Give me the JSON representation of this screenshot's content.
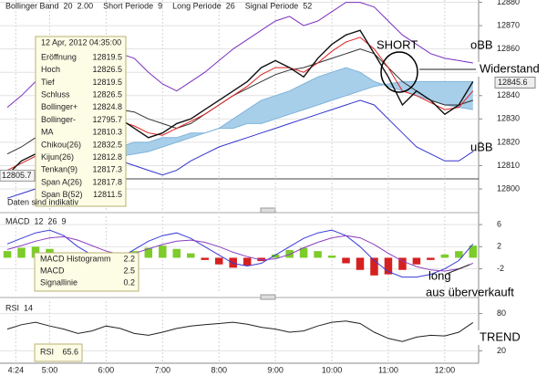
{
  "header": [
    {
      "label": "Bollinger Band",
      "params": [
        20,
        "2.00"
      ]
    },
    {
      "label": "Short Periode",
      "params": [
        9
      ]
    },
    {
      "label": "Long Periode",
      "params": [
        26
      ]
    },
    {
      "label": "Signal Periode",
      "params": [
        52
      ]
    }
  ],
  "info_box": {
    "date": "12 Apr, 2012 04:35:00",
    "rows": [
      {
        "label": "Eröffnung",
        "value": 12819.5,
        "color": "#222222"
      },
      {
        "label": "Hoch",
        "value": 12826.5,
        "color": "#222222"
      },
      {
        "label": "Tief",
        "value": 12819.5,
        "color": "#222222"
      },
      {
        "label": "Schluss",
        "value": 12826.5,
        "color": "#19b8d8"
      },
      {
        "label": "Bollinger+",
        "value": 12824.8,
        "color": "#2a2ad0"
      },
      {
        "label": "Bollinger-",
        "value": 12795.7,
        "color": "#2a2ad0"
      },
      {
        "label": "MA",
        "value": 12810.3,
        "color": "#222222"
      },
      {
        "label": "Chikou(26)",
        "value": 12832.5,
        "color": "#c0246a"
      },
      {
        "label": "Kijun(26)",
        "value": 12812.8,
        "color": "#2a2ad0"
      },
      {
        "label": "Tenkan(9)",
        "value": 12817.3,
        "color": "#e02020"
      },
      {
        "label": "Span A(26)",
        "value": 12817.8,
        "color": "#222222"
      },
      {
        "label": "Span B(52)",
        "value": 12811.5,
        "color": "#bbbbbb"
      }
    ]
  },
  "disclaimer": "Daten sind indikativ",
  "current_price": 12845.6,
  "left_price": 12805.7,
  "annotations": {
    "short": "SHORT",
    "obb": "oBB",
    "resistance": "Widerstand",
    "ubb": "uBB",
    "long1": "long",
    "long2": "aus überverkauft",
    "trend": "TREND"
  },
  "macd_box": [
    {
      "label": "MACD Histogramm",
      "value": 2.2
    },
    {
      "label": "MACD",
      "value": 2.5
    },
    {
      "label": "Signallinie",
      "value": 0.2
    }
  ],
  "macd_header": {
    "label": "MACD",
    "params": [
      12,
      26,
      9
    ]
  },
  "rsi_header": {
    "label": "RSI",
    "params": [
      14
    ]
  },
  "rsi_box": {
    "label": "RSI",
    "value": 65.6
  },
  "chart_data": [
    {
      "type": "line",
      "x": [
        4.25,
        4.5,
        4.75,
        5,
        5.25,
        5.5,
        5.75,
        6,
        6.25,
        6.5,
        6.75,
        7,
        7.25,
        7.5,
        7.75,
        8,
        8.25,
        8.5,
        8.75,
        9,
        9.25,
        9.5,
        9.75,
        10,
        10.25,
        10.5,
        10.75,
        11,
        11.25,
        11.5,
        11.75,
        12,
        12.25,
        12.5
      ],
      "xlim": [
        4.12,
        12.6
      ],
      "xticks": [
        {
          "value": 4.4,
          "label": "4:24"
        },
        {
          "value": 5,
          "label": "5:00"
        },
        {
          "value": 6,
          "label": "6:00"
        },
        {
          "value": 7,
          "label": "7:00"
        },
        {
          "value": 8,
          "label": "8:00"
        },
        {
          "value": 9,
          "label": "9:00"
        },
        {
          "value": 10,
          "label": "10:00"
        },
        {
          "value": 11,
          "label": "11:00"
        },
        {
          "value": 12,
          "label": "12:00"
        }
      ],
      "ylim": [
        12791,
        12881
      ],
      "yticks": [
        12800,
        12810,
        12820,
        12830,
        12840,
        12850,
        12860,
        12870,
        12880
      ],
      "grid": true,
      "cloud": {
        "color": "#a8cfea",
        "span_a": [
          null,
          null,
          null,
          null,
          null,
          null,
          null,
          12812,
          12814,
          12815,
          12816,
          12818,
          12820,
          12822,
          12824,
          12826,
          12830,
          12834,
          12838,
          12840,
          12842,
          12845,
          12848,
          12850,
          12852,
          12850,
          12846,
          12844,
          12842,
          12840,
          12838,
          12836,
          12835,
          12834
        ],
        "span_b": [
          null,
          null,
          null,
          null,
          null,
          null,
          null,
          12818,
          12818,
          12820,
          12820,
          12822,
          12822,
          12824,
          12824,
          12826,
          12826,
          12828,
          12828,
          12830,
          12832,
          12834,
          12836,
          12838,
          12840,
          12842,
          12844,
          12845,
          12846,
          12846,
          12846,
          12846,
          12846,
          12846
        ]
      },
      "series": [
        {
          "color": "#7a2fbf",
          "values": [
            12835,
            12840,
            12846,
            12850,
            12848,
            12845,
            12848,
            12852,
            12858,
            12856,
            12850,
            12845,
            12842,
            12846,
            12850,
            12855,
            12860,
            12864,
            12868,
            12872,
            12874,
            12870,
            12872,
            12876,
            12880,
            12880,
            12878,
            12872,
            12866,
            12862,
            12858,
            12856,
            12855,
            12854
          ]
        },
        {
          "color": "#3333cc",
          "values": [
            12796,
            12798,
            12800,
            12803,
            12806,
            12808,
            12810,
            12812,
            12812,
            12810,
            12808,
            12806,
            12808,
            12812,
            12815,
            12818,
            12820,
            12822,
            12824,
            12826,
            12828,
            12830,
            12832,
            12834,
            12836,
            12838,
            12836,
            12830,
            12824,
            12818,
            12815,
            12812,
            12812,
            12816
          ]
        },
        {
          "color": "#333333",
          "values": [
            12815,
            12818,
            12822,
            12826,
            12828,
            12828,
            12830,
            12832,
            12834,
            12833,
            12830,
            12828,
            12826,
            12828,
            12832,
            12836,
            12840,
            12843,
            12846,
            12849,
            12851,
            12852,
            12854,
            12856,
            12858,
            12860,
            12858,
            12852,
            12846,
            12842,
            12838,
            12836,
            12836,
            12838
          ]
        },
        {
          "color": "#e02020",
          "values": [
            12808,
            12811,
            12814,
            12817,
            12820,
            12821,
            12824,
            12828,
            12829,
            12827,
            12824,
            12823,
            12826,
            12829,
            12832,
            12836,
            12840,
            12844,
            12849,
            12852,
            12852,
            12850,
            12854,
            12859,
            12863,
            12865,
            12860,
            12852,
            12842,
            12840,
            12837,
            12834,
            12835,
            12842
          ]
        },
        {
          "color": "#111111",
          "values": [
            12806,
            12812,
            12815,
            12818,
            12822,
            12820,
            12826,
            12832,
            12830,
            12826,
            12822,
            12824,
            12828,
            12830,
            12834,
            12838,
            12842,
            12846,
            12852,
            12855,
            12852,
            12848,
            12856,
            12862,
            12866,
            12868,
            12858,
            12848,
            12836,
            12842,
            12838,
            12832,
            12836,
            12846
          ]
        }
      ]
    },
    {
      "type": "bar",
      "values": [
        1.2,
        1.8,
        2.0,
        1.6,
        0.8,
        -0.6,
        -1.2,
        -0.8,
        0.4,
        1.2,
        1.8,
        2.2,
        1.6,
        0.8,
        -0.4,
        -1.2,
        -1.8,
        -1.4,
        -0.6,
        0.6,
        1.4,
        1.8,
        1.2,
        0.4,
        -1.0,
        -2.2,
        -3.2,
        -3.0,
        -2.2,
        -1.2,
        -0.4,
        0.6,
        1.2,
        2.2
      ],
      "positive_color": "#7ccc2a",
      "negative_color": "#d62020",
      "ylim": [
        -6.2,
        7.5
      ],
      "yticks": [
        -2,
        2,
        6
      ],
      "grid": true,
      "series": [
        {
          "color": "#3a3ad8",
          "values": [
            2.5,
            3.5,
            4.5,
            5,
            4,
            2,
            0.5,
            -0.5,
            0,
            1.5,
            3,
            4,
            4.5,
            3.5,
            2,
            0.5,
            -1,
            -1.5,
            -1,
            0.5,
            2,
            3.5,
            4.5,
            5,
            4,
            2,
            -0.5,
            -2.5,
            -3.5,
            -3.5,
            -3,
            -2,
            -0.5,
            2.5
          ]
        },
        {
          "color": "#8a3fbf",
          "values": [
            1.5,
            2.2,
            3,
            3.6,
            3.8,
            3.2,
            2.2,
            1.2,
            0.6,
            0.8,
            1.6,
            2.4,
            3,
            3.2,
            2.8,
            2,
            1,
            0.2,
            -0.4,
            -0.2,
            0.6,
            1.8,
            2.8,
            3.6,
            4,
            3.6,
            2.4,
            0.8,
            -0.6,
            -1.6,
            -2.2,
            -2.4,
            -2,
            -1
          ]
        }
      ]
    },
    {
      "type": "line",
      "ylim": [
        0,
        100
      ],
      "yticks": [
        20,
        80
      ],
      "grid": true,
      "reference_color": "#5577cc",
      "series": [
        {
          "color": "#222222",
          "values": [
            55,
            62,
            66,
            60,
            55,
            48,
            52,
            60,
            56,
            48,
            45,
            50,
            56,
            60,
            62,
            64,
            66,
            63,
            58,
            55,
            50,
            52,
            60,
            66,
            68,
            64,
            50,
            40,
            35,
            42,
            45,
            44,
            50,
            65.6
          ]
        }
      ]
    }
  ]
}
